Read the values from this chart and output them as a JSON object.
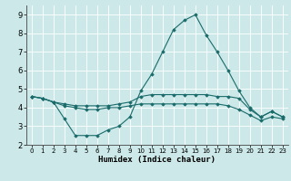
{
  "title": "",
  "xlabel": "Humidex (Indice chaleur)",
  "background_color": "#cce8e8",
  "line_color": "#1a6b6b",
  "grid_color": "#ffffff",
  "x": [
    0,
    1,
    2,
    3,
    4,
    5,
    6,
    7,
    8,
    9,
    10,
    11,
    12,
    13,
    14,
    15,
    16,
    17,
    18,
    19,
    20,
    21,
    22,
    23
  ],
  "y_top": [
    4.6,
    4.5,
    4.3,
    3.4,
    2.5,
    2.5,
    2.5,
    2.8,
    3.0,
    3.5,
    4.9,
    5.8,
    7.0,
    8.2,
    8.7,
    9.0,
    7.9,
    7.0,
    6.0,
    4.9,
    4.0,
    3.5,
    3.8,
    3.5
  ],
  "y_mid": [
    4.6,
    4.5,
    4.3,
    4.2,
    4.1,
    4.1,
    4.1,
    4.1,
    4.2,
    4.3,
    4.6,
    4.7,
    4.7,
    4.7,
    4.7,
    4.7,
    4.7,
    4.6,
    4.6,
    4.5,
    3.9,
    3.5,
    3.8,
    3.5
  ],
  "y_bot": [
    4.6,
    4.5,
    4.3,
    4.1,
    4.0,
    3.9,
    3.9,
    4.0,
    4.0,
    4.1,
    4.2,
    4.2,
    4.2,
    4.2,
    4.2,
    4.2,
    4.2,
    4.2,
    4.1,
    3.9,
    3.6,
    3.3,
    3.5,
    3.4
  ],
  "ylim": [
    2,
    9.5
  ],
  "xlim": [
    -0.5,
    23.5
  ],
  "yticks": [
    2,
    3,
    4,
    5,
    6,
    7,
    8,
    9
  ],
  "xticks": [
    0,
    1,
    2,
    3,
    4,
    5,
    6,
    7,
    8,
    9,
    10,
    11,
    12,
    13,
    14,
    15,
    16,
    17,
    18,
    19,
    20,
    21,
    22,
    23
  ]
}
